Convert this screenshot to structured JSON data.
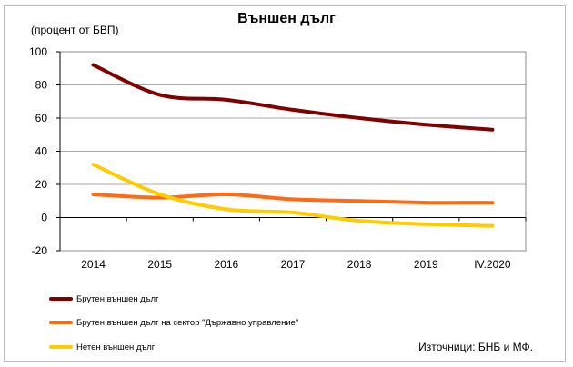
{
  "chart_data": {
    "type": "line",
    "title": "Външен дълг",
    "ylabel": "(процент от БВП)",
    "categories": [
      "2014",
      "2015",
      "2016",
      "2017",
      "2018",
      "2019",
      "IV.2020"
    ],
    "ylim": [
      -20,
      100
    ],
    "yticks": [
      -20,
      0,
      20,
      40,
      60,
      80,
      100
    ],
    "grid": true,
    "legend_position": "bottom-left",
    "series": [
      {
        "name": "Брутен външен дълг",
        "color": "#7f0000",
        "values": [
          92,
          74,
          71,
          65,
          60,
          56,
          53
        ]
      },
      {
        "name": "Брутен външен дълг на сектор \"Държавно управление\"",
        "color": "#ff6a13",
        "values": [
          14,
          12,
          14,
          11,
          10,
          9,
          9
        ]
      },
      {
        "name": "Нетен външен дълг",
        "color": "#ffcc00",
        "values": [
          32,
          14,
          5,
          3,
          -2,
          -4,
          -5
        ]
      }
    ],
    "source": "Източници: БНБ и МФ."
  }
}
